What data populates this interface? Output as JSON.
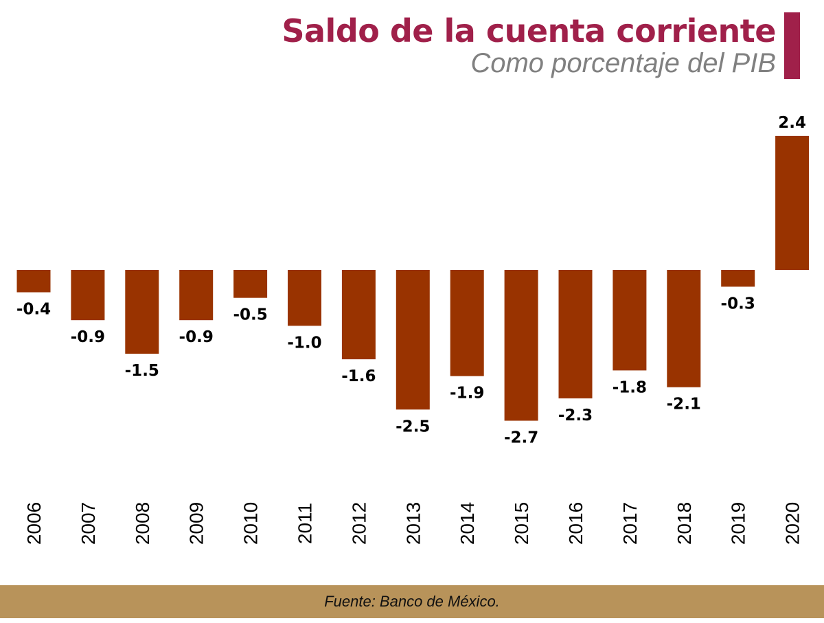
{
  "chart_data": {
    "type": "bar",
    "title": "Saldo de la cuenta corriente",
    "subtitle": "Como porcentaje del PIB",
    "categories": [
      "2006",
      "2007",
      "2008",
      "2009",
      "2010",
      "2011",
      "2012",
      "2013",
      "2014",
      "2015",
      "2016",
      "2017",
      "2018",
      "2019",
      "2020"
    ],
    "values": [
      -0.4,
      -0.9,
      -1.5,
      -0.9,
      -0.5,
      -1.0,
      -1.6,
      -2.5,
      -1.9,
      -2.7,
      -2.3,
      -1.8,
      -2.1,
      -0.3,
      2.4
    ],
    "labels": [
      "-0.4",
      "-0.9",
      "-1.5",
      "-0.9",
      "-0.5",
      "-1.0",
      "-1.6",
      "-2.5",
      "-1.9",
      "-2.7",
      "-2.3",
      "-1.8",
      "-2.1",
      "-0.3",
      "2.4"
    ],
    "xlabel": "",
    "ylabel": "",
    "grid": false,
    "bar_color": "#993300",
    "title_color": "#a0204a"
  },
  "footer": {
    "source": "Fuente: Banco de México."
  }
}
